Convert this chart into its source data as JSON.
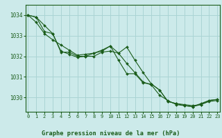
{
  "title": "Graphe pression niveau de la mer (hPa)",
  "bg_color": "#cceaea",
  "grid_color": "#aad4d4",
  "line_color": "#1a5c1a",
  "marker_color": "#1a5c1a",
  "xlim": [
    -0.3,
    23.3
  ],
  "ylim": [
    1029.3,
    1034.5
  ],
  "yticks": [
    1030,
    1031,
    1032,
    1033,
    1034
  ],
  "xticks": [
    0,
    1,
    2,
    3,
    4,
    5,
    6,
    7,
    8,
    9,
    10,
    11,
    12,
    13,
    14,
    15,
    16,
    17,
    18,
    19,
    20,
    21,
    22,
    23
  ],
  "series": [
    [
      1034.0,
      1033.9,
      1033.5,
      1033.1,
      1032.25,
      1032.1,
      1031.95,
      1032.0,
      1032.0,
      1032.2,
      1032.25,
      1032.15,
      1032.45,
      1031.8,
      1031.2,
      1030.65,
      1030.35,
      1029.8,
      1029.7,
      1029.65,
      1029.6,
      1029.65,
      1029.8,
      1029.85
    ],
    [
      1034.0,
      1033.65,
      1033.1,
      1032.8,
      1032.55,
      1032.3,
      1032.05,
      1032.1,
      1032.15,
      1032.3,
      1032.5,
      1031.8,
      1031.15,
      1031.15,
      1030.7,
      1030.65,
      1030.35,
      1029.8,
      1029.7,
      1029.6,
      1029.55,
      1029.65,
      1029.85,
      1029.9
    ],
    [
      1034.0,
      1033.9,
      1033.2,
      1033.1,
      1032.2,
      1032.2,
      1032.0,
      1032.0,
      1032.15,
      1032.25,
      1032.5,
      1032.15,
      1031.65,
      1031.2,
      1030.75,
      1030.6,
      1030.1,
      1029.85,
      1029.65,
      1029.6,
      1029.55,
      1029.7,
      1029.85,
      1029.9
    ]
  ]
}
